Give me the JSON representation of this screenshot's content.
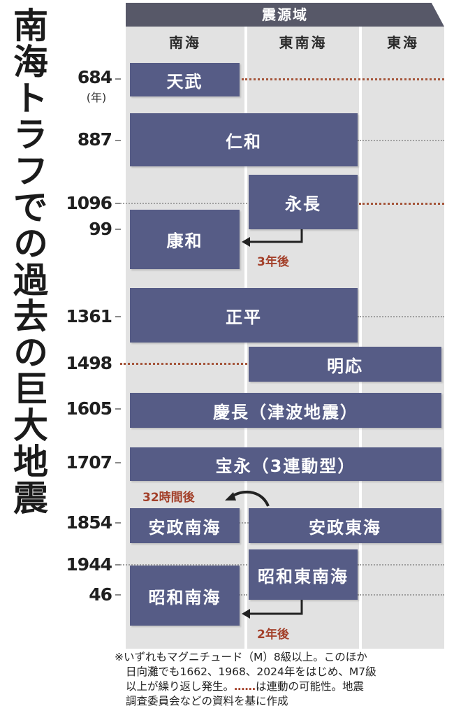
{
  "title": "南海トラフでの過去の巨大地震",
  "header": {
    "source_region_label": "震源域",
    "columns": [
      "南海",
      "東南海",
      "東海"
    ]
  },
  "years": {
    "y684": "684",
    "y684_unit": "(年)",
    "y887": "887",
    "y1096": "1096",
    "y1099": "99",
    "y1361": "1361",
    "y1498": "1498",
    "y1605": "1605",
    "y1707": "1707",
    "y1854": "1854",
    "y1944": "1944",
    "y1946": "46"
  },
  "earthquakes": {
    "tenmu": "天武",
    "ninna": "仁和",
    "eicho": "永長",
    "kowa": "康和",
    "shohei": "正平",
    "meio": "明応",
    "keicho": "慶長（津波地震）",
    "hoei": "宝永（3連動型）",
    "ansei_nankai": "安政南海",
    "ansei_tokai": "安政東海",
    "showa_tonankai": "昭和東南海",
    "showa_nankai": "昭和南海"
  },
  "notes": {
    "three_years": "3年後",
    "thirty_two_hours": "32時間後",
    "two_years": "2年後"
  },
  "footnote": {
    "line1": "※いずれもマグニチュード（M）8級以上。このほか",
    "line2": "日向灘でも1662、1968、2024年をはじめ、M7級",
    "line3": "以上が繰り返し発生。",
    "line3_dots": "……",
    "line3_tail": "は連動の可能性。地震",
    "line4": "調査委員会などの資料を基に作成"
  },
  "colors": {
    "box": "#565c86",
    "band": "#e2e2e2",
    "header": "#575868",
    "accent": "#a3402a"
  }
}
